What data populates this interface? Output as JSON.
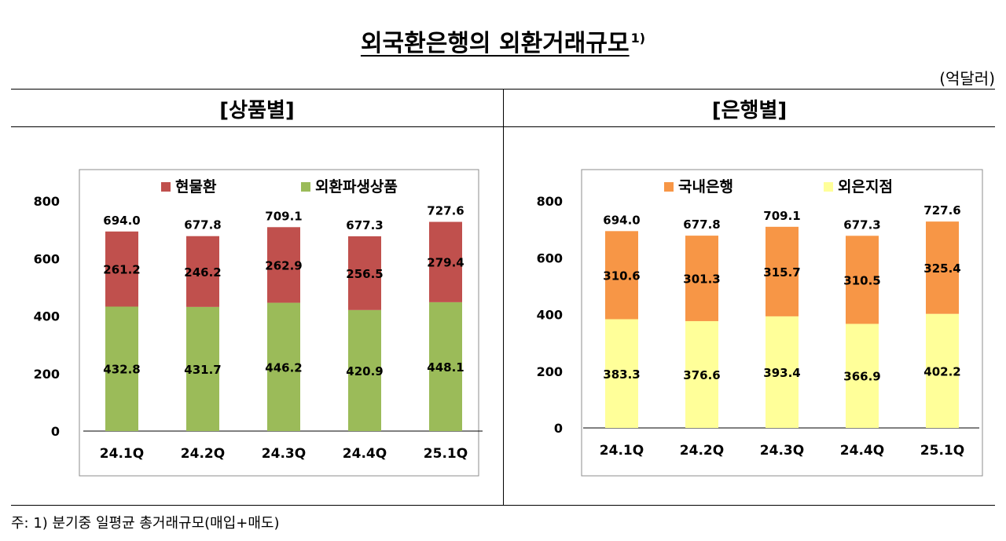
{
  "title": "외국환은행의 외환거래규모",
  "title_note": "1)",
  "unit": "(억달러)",
  "footnote": "주: 1) 분기중 일평균 총거래규모(매입+매도)",
  "chart_data": [
    {
      "type": "bar",
      "stacked": true,
      "panel_title": "[상품별]",
      "categories": [
        "24.1Q",
        "24.2Q",
        "24.3Q",
        "24.4Q",
        "25.1Q"
      ],
      "series": [
        {
          "name": "외환파생상품",
          "values": [
            432.8,
            431.7,
            446.2,
            420.9,
            448.1
          ],
          "color": "#9BBB59"
        },
        {
          "name": "현물환",
          "values": [
            261.2,
            246.2,
            262.9,
            256.5,
            279.4
          ],
          "color": "#C0504D"
        }
      ],
      "totals": [
        "694.0",
        "677.8",
        "709.1",
        "677.3",
        "727.6"
      ],
      "legend_order": [
        "현물환",
        "외환파생상품"
      ],
      "yticks": [
        "0",
        "200",
        "400",
        "600",
        "800"
      ],
      "ylim": [
        0,
        800
      ],
      "legend": "top"
    },
    {
      "type": "bar",
      "stacked": true,
      "panel_title": "[은행별]",
      "categories": [
        "24.1Q",
        "24.2Q",
        "24.3Q",
        "24.4Q",
        "25.1Q"
      ],
      "series": [
        {
          "name": "외은지점",
          "values": [
            383.3,
            376.6,
            393.4,
            366.9,
            402.2
          ],
          "color": "#FFFF99"
        },
        {
          "name": "국내은행",
          "values": [
            310.6,
            301.3,
            315.7,
            310.5,
            325.4
          ],
          "color": "#F79646"
        }
      ],
      "totals": [
        "694.0",
        "677.8",
        "709.1",
        "677.3",
        "727.6"
      ],
      "legend_order": [
        "국내은행",
        "외은지점"
      ],
      "yticks": [
        "0",
        "200",
        "400",
        "600",
        "800"
      ],
      "ylim": [
        0,
        800
      ],
      "legend": "top"
    }
  ]
}
